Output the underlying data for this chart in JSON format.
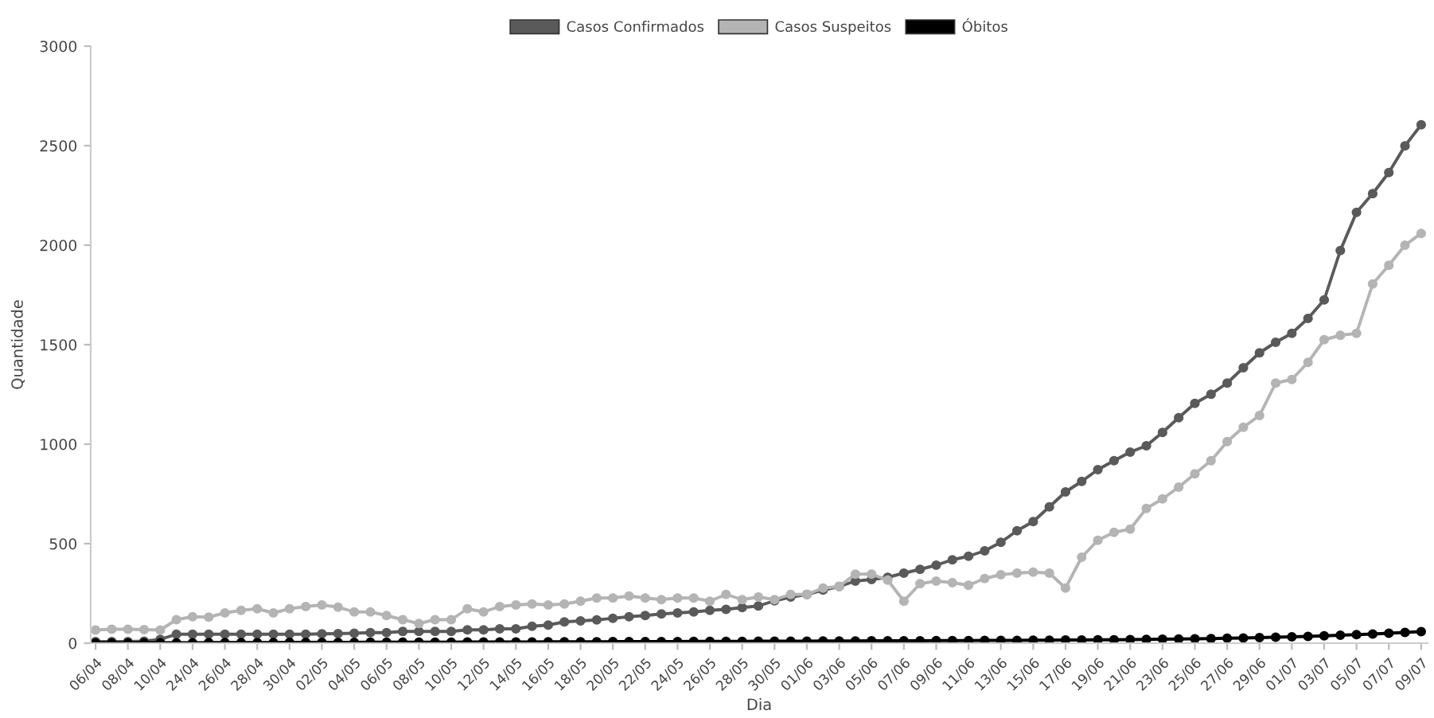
{
  "chart_data": {
    "type": "line",
    "xlabel": "Dia",
    "ylabel": "Quantidade",
    "legend": "top",
    "marker": "circle",
    "line_style": "solid",
    "ylim": [
      0,
      3000
    ],
    "yticks": [
      0,
      500,
      1000,
      1500,
      2000,
      2500,
      3000
    ],
    "categories": [
      "06/04",
      null,
      "08/04",
      null,
      "10/04",
      null,
      "24/04",
      null,
      "26/04",
      null,
      "28/04",
      null,
      "30/04",
      null,
      "02/05",
      null,
      "04/05",
      null,
      "06/05",
      null,
      "08/05",
      null,
      "10/05",
      null,
      "12/05",
      null,
      "14/05",
      null,
      "16/05",
      null,
      "18/05",
      null,
      "20/05",
      null,
      "22/05",
      null,
      "24/05",
      null,
      "26/05",
      null,
      "28/05",
      null,
      "30/05",
      null,
      "01/06",
      null,
      "03/06",
      null,
      "05/06",
      null,
      "07/06",
      null,
      "09/06",
      null,
      "11/06",
      null,
      "13/06",
      null,
      "15/06",
      null,
      "17/06",
      null,
      "19/06",
      null,
      "21/06",
      null,
      "23/06",
      null,
      "25/06",
      null,
      "27/06",
      null,
      "29/06",
      null,
      "01/07",
      null,
      "03/07",
      null,
      "05/07",
      null,
      "07/07",
      null,
      "09/07"
    ],
    "series": [
      {
        "name": "Casos Confirmados",
        "color": "#5a5a5a",
        "values": [
          8,
          8,
          8,
          10,
          19,
          45,
          45,
          45,
          45,
          45,
          45,
          45,
          45,
          45,
          47,
          48,
          50,
          53,
          53,
          59,
          59,
          59,
          59,
          67,
          67,
          72,
          72,
          85,
          91,
          107,
          112,
          117,
          125,
          133,
          139,
          147,
          152,
          157,
          165,
          170,
          179,
          187,
          213,
          232,
          245,
          267,
          285,
          312,
          320,
          331,
          352,
          371,
          392,
          419,
          437,
          464,
          507,
          565,
          611,
          685,
          760,
          813,
          872,
          917,
          960,
          992,
          1059,
          1133,
          1205,
          1251,
          1307,
          1384,
          1459,
          1512,
          1557,
          1632,
          1725,
          1973,
          2165,
          2259,
          2365,
          2499,
          2605
        ]
      },
      {
        "name": "Casos Suspeitos",
        "color": "#b4b4b4",
        "values": [
          66,
          70,
          70,
          68,
          66,
          118,
          133,
          131,
          152,
          165,
          173,
          152,
          173,
          184,
          192,
          181,
          157,
          157,
          139,
          118,
          99,
          118,
          118,
          173,
          157,
          184,
          192,
          197,
          192,
          197,
          211,
          227,
          227,
          237,
          227,
          219,
          227,
          227,
          211,
          245,
          219,
          232,
          219,
          245,
          245,
          277,
          285,
          347,
          347,
          317,
          211,
          299,
          312,
          304,
          291,
          325,
          344,
          352,
          357,
          352,
          277,
          432,
          517,
          557,
          573,
          677,
          725,
          784,
          851,
          917,
          1013,
          1085,
          1144,
          1307,
          1325,
          1411,
          1525,
          1547,
          1557,
          1805,
          1899,
          2000,
          2059
        ]
      },
      {
        "name": "Óbitos",
        "color": "#000000",
        "values": [
          1,
          1,
          1,
          2,
          2,
          2,
          2,
          3,
          3,
          3,
          3,
          3,
          4,
          4,
          4,
          4,
          4,
          5,
          5,
          5,
          5,
          5,
          5,
          6,
          6,
          6,
          6,
          6,
          7,
          7,
          7,
          7,
          8,
          8,
          8,
          8,
          8,
          9,
          9,
          9,
          9,
          10,
          10,
          10,
          10,
          11,
          11,
          11,
          12,
          12,
          12,
          12,
          13,
          13,
          13,
          14,
          14,
          14,
          15,
          15,
          16,
          16,
          17,
          17,
          18,
          19,
          20,
          21,
          22,
          23,
          25,
          26,
          28,
          30,
          32,
          34,
          37,
          40,
          43,
          46,
          50,
          54,
          58
        ]
      }
    ]
  }
}
